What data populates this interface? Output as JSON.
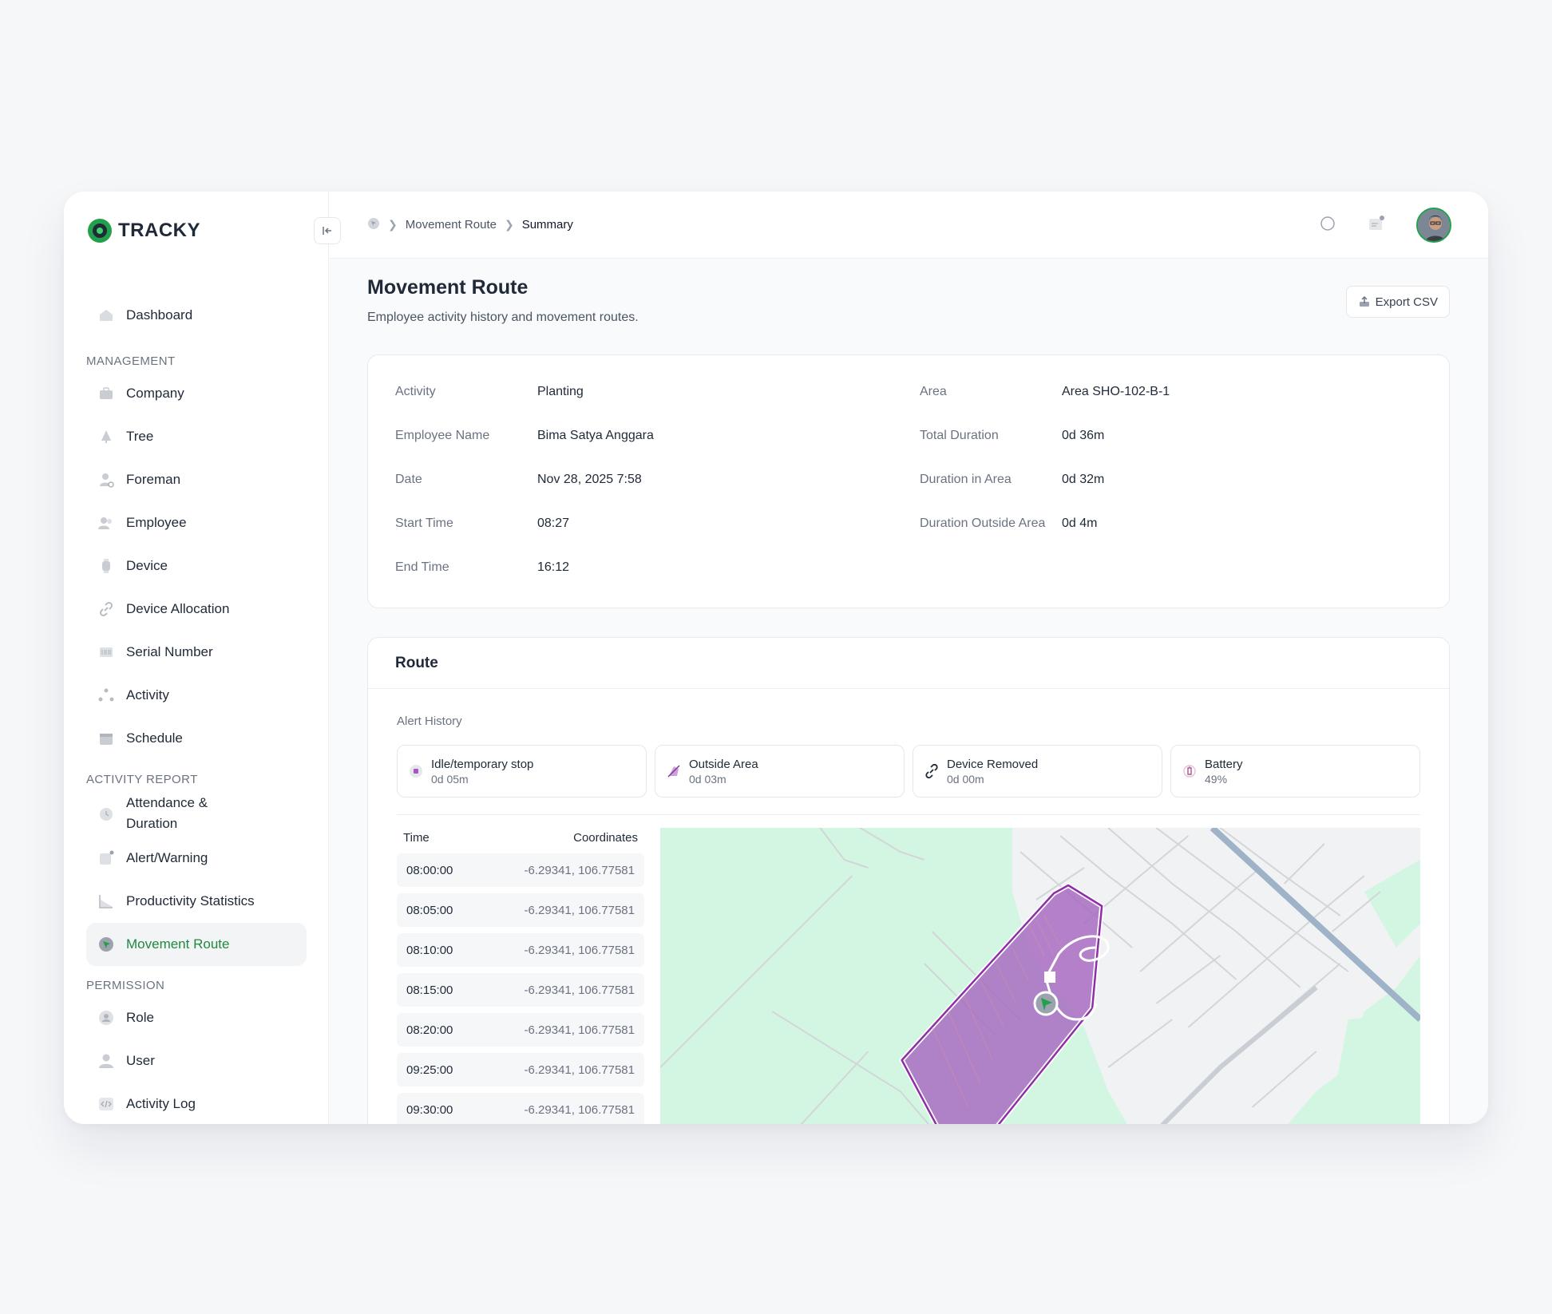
{
  "app": {
    "logo_text": "TRACKY"
  },
  "sidebar": {
    "top_items": [
      {
        "label": "Dashboard",
        "icon": "home-icon"
      }
    ],
    "sections": [
      {
        "title": "MANAGEMENT",
        "items": [
          {
            "label": "Company",
            "icon": "briefcase-icon"
          },
          {
            "label": "Tree",
            "icon": "tree-icon"
          },
          {
            "label": "Foreman",
            "icon": "foreman-icon"
          },
          {
            "label": "Employee",
            "icon": "employee-icon"
          },
          {
            "label": "Device",
            "icon": "watch-icon"
          },
          {
            "label": "Device Allocation",
            "icon": "link-icon"
          },
          {
            "label": "Serial Number",
            "icon": "barcode-icon"
          },
          {
            "label": "Activity",
            "icon": "activity-icon"
          },
          {
            "label": "Schedule",
            "icon": "calendar-icon"
          }
        ]
      },
      {
        "title": "ACTIVITY REPORT",
        "items": [
          {
            "label": "Attendance & Duration",
            "icon": "clock-icon"
          },
          {
            "label": "Alert/Warning",
            "icon": "alert-icon"
          },
          {
            "label": "Productivity Statistics",
            "icon": "chart-icon"
          },
          {
            "label": "Movement Route",
            "icon": "route-icon",
            "active": true
          }
        ]
      },
      {
        "title": "PERMISSION",
        "items": [
          {
            "label": "Role",
            "icon": "role-icon"
          },
          {
            "label": "User",
            "icon": "user-icon"
          },
          {
            "label": "Activity Log",
            "icon": "code-icon"
          }
        ]
      }
    ]
  },
  "breadcrumb": {
    "items": [
      "Movement Route",
      "Summary"
    ]
  },
  "page": {
    "title": "Movement Route",
    "subtitle": "Employee activity history and movement routes.",
    "export_label": "Export CSV"
  },
  "info": {
    "left": [
      {
        "key": "Activity",
        "value": "Planting"
      },
      {
        "key": "Employee Name",
        "value": "Bima Satya Anggara"
      },
      {
        "key": "Date",
        "value": "Nov 28, 2025 7:58"
      },
      {
        "key": "Start Time",
        "value": "08:27"
      },
      {
        "key": "End Time",
        "value": "16:12"
      }
    ],
    "right": [
      {
        "key": "Area",
        "value": "Area SHO-102-B-1"
      },
      {
        "key": "Total Duration",
        "value": "0d 36m"
      },
      {
        "key": "Duration in Area",
        "value": "0d 32m"
      },
      {
        "key": "Duration Outside Area",
        "value": "0d 4m"
      }
    ]
  },
  "route": {
    "title": "Route",
    "alert_history_title": "Alert History",
    "alerts": [
      {
        "name": "Idle/temporary stop",
        "value": "0d 05m",
        "icon": "stop-icon"
      },
      {
        "name": "Outside Area",
        "value": "0d 03m",
        "icon": "outside-area-icon"
      },
      {
        "name": "Device Removed",
        "value": "0d 00m",
        "icon": "unlink-icon"
      },
      {
        "name": "Battery",
        "value": "49%",
        "icon": "battery-icon"
      }
    ],
    "table": {
      "col_time": "Time",
      "col_coords": "Coordinates",
      "rows": [
        {
          "time": "08:00:00",
          "coords": "-6.29341, 106.77581"
        },
        {
          "time": "08:05:00",
          "coords": "-6.29341, 106.77581"
        },
        {
          "time": "08:10:00",
          "coords": "-6.29341, 106.77581"
        },
        {
          "time": "08:15:00",
          "coords": "-6.29341, 106.77581"
        },
        {
          "time": "08:20:00",
          "coords": "-6.29341, 106.77581"
        },
        {
          "time": "09:25:00",
          "coords": "-6.29341, 106.77581"
        },
        {
          "time": "09:30:00",
          "coords": "-6.29341, 106.77581"
        }
      ]
    }
  },
  "colors": {
    "accent": "#22a04b",
    "area_fill": "#a86cc1",
    "area_stroke": "#8e2fa8",
    "map_green": "#d3f6e2",
    "map_gray": "#f1f2f3"
  }
}
